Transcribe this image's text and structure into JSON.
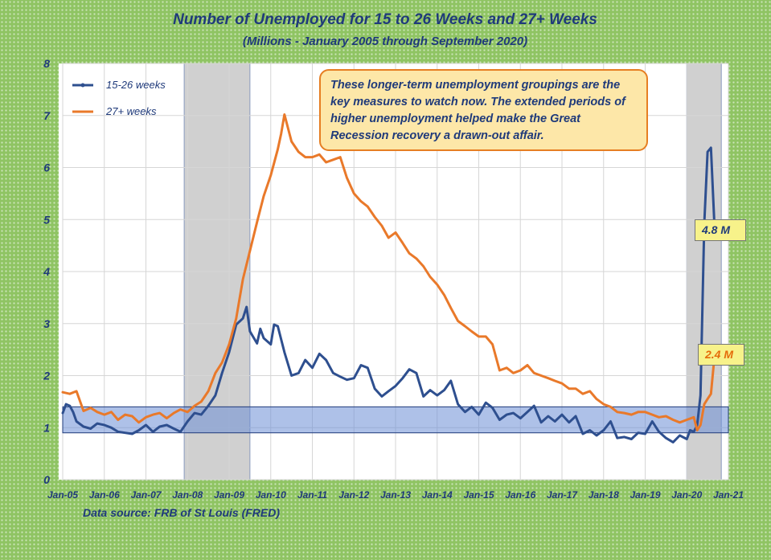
{
  "chart_data": {
    "type": "line",
    "title": "Number of Unemployed for 15 to 26 Weeks and 27+ Weeks",
    "subtitle": "(Millions - January 2005 through September 2020)",
    "xlabel": "",
    "ylabel": "",
    "ylim": [
      0,
      8
    ],
    "yticks": [
      "0",
      "1",
      "2",
      "3",
      "4",
      "5",
      "6",
      "7",
      "8"
    ],
    "x_ticks": [
      "Jan-05",
      "Jan-06",
      "Jan-07",
      "Jan-08",
      "Jan-09",
      "Jan-10",
      "Jan-11",
      "Jan-12",
      "Jan-13",
      "Jan-14",
      "Jan-15",
      "Jan-16",
      "Jan-17",
      "Jan-18",
      "Jan-19",
      "Jan-20",
      "Jan-21"
    ],
    "grid": "horizontal-and-vertical",
    "legend_position": "top-left",
    "x_format": "decimal year",
    "recession_shading": [
      [
        2007.92,
        2009.5
      ],
      [
        2020.0,
        2020.83
      ]
    ],
    "highlight_band": [
      0.9,
      1.4
    ],
    "series": [
      {
        "name": "15-26 weeks",
        "color": "#2e4f8f",
        "points": [
          [
            2005.0,
            1.28
          ],
          [
            2005.08,
            1.45
          ],
          [
            2005.17,
            1.42
          ],
          [
            2005.25,
            1.3
          ],
          [
            2005.33,
            1.12
          ],
          [
            2005.5,
            1.02
          ],
          [
            2005.67,
            0.98
          ],
          [
            2005.83,
            1.08
          ],
          [
            2006.0,
            1.05
          ],
          [
            2006.17,
            1.0
          ],
          [
            2006.33,
            0.92
          ],
          [
            2006.5,
            0.9
          ],
          [
            2006.67,
            0.88
          ],
          [
            2006.83,
            0.95
          ],
          [
            2007.0,
            1.05
          ],
          [
            2007.17,
            0.92
          ],
          [
            2007.33,
            1.02
          ],
          [
            2007.5,
            1.05
          ],
          [
            2007.67,
            0.98
          ],
          [
            2007.83,
            0.92
          ],
          [
            2008.0,
            1.12
          ],
          [
            2008.17,
            1.28
          ],
          [
            2008.33,
            1.25
          ],
          [
            2008.5,
            1.42
          ],
          [
            2008.67,
            1.62
          ],
          [
            2008.83,
            2.05
          ],
          [
            2009.0,
            2.45
          ],
          [
            2009.17,
            2.98
          ],
          [
            2009.33,
            3.1
          ],
          [
            2009.42,
            3.32
          ],
          [
            2009.5,
            2.85
          ],
          [
            2009.67,
            2.62
          ],
          [
            2009.75,
            2.9
          ],
          [
            2009.83,
            2.72
          ],
          [
            2010.0,
            2.6
          ],
          [
            2010.08,
            2.98
          ],
          [
            2010.17,
            2.95
          ],
          [
            2010.33,
            2.45
          ],
          [
            2010.5,
            2.0
          ],
          [
            2010.67,
            2.05
          ],
          [
            2010.83,
            2.3
          ],
          [
            2011.0,
            2.15
          ],
          [
            2011.17,
            2.42
          ],
          [
            2011.33,
            2.3
          ],
          [
            2011.5,
            2.05
          ],
          [
            2011.67,
            1.98
          ],
          [
            2011.83,
            1.92
          ],
          [
            2012.0,
            1.95
          ],
          [
            2012.17,
            2.2
          ],
          [
            2012.33,
            2.15
          ],
          [
            2012.5,
            1.75
          ],
          [
            2012.67,
            1.6
          ],
          [
            2012.83,
            1.7
          ],
          [
            2013.0,
            1.8
          ],
          [
            2013.17,
            1.95
          ],
          [
            2013.33,
            2.12
          ],
          [
            2013.5,
            2.05
          ],
          [
            2013.67,
            1.6
          ],
          [
            2013.83,
            1.72
          ],
          [
            2014.0,
            1.62
          ],
          [
            2014.17,
            1.72
          ],
          [
            2014.33,
            1.9
          ],
          [
            2014.5,
            1.45
          ],
          [
            2014.67,
            1.3
          ],
          [
            2014.83,
            1.4
          ],
          [
            2015.0,
            1.25
          ],
          [
            2015.17,
            1.48
          ],
          [
            2015.33,
            1.38
          ],
          [
            2015.5,
            1.15
          ],
          [
            2015.67,
            1.25
          ],
          [
            2015.83,
            1.28
          ],
          [
            2016.0,
            1.18
          ],
          [
            2016.17,
            1.3
          ],
          [
            2016.33,
            1.42
          ],
          [
            2016.5,
            1.1
          ],
          [
            2016.67,
            1.22
          ],
          [
            2016.83,
            1.12
          ],
          [
            2017.0,
            1.25
          ],
          [
            2017.17,
            1.1
          ],
          [
            2017.33,
            1.22
          ],
          [
            2017.5,
            0.88
          ],
          [
            2017.67,
            0.95
          ],
          [
            2017.83,
            0.85
          ],
          [
            2018.0,
            0.95
          ],
          [
            2018.17,
            1.12
          ],
          [
            2018.33,
            0.8
          ],
          [
            2018.5,
            0.82
          ],
          [
            2018.67,
            0.78
          ],
          [
            2018.83,
            0.9
          ],
          [
            2019.0,
            0.88
          ],
          [
            2019.17,
            1.12
          ],
          [
            2019.33,
            0.92
          ],
          [
            2019.5,
            0.8
          ],
          [
            2019.67,
            0.72
          ],
          [
            2019.83,
            0.85
          ],
          [
            2020.0,
            0.78
          ],
          [
            2020.08,
            0.95
          ],
          [
            2020.17,
            0.92
          ],
          [
            2020.25,
            1.05
          ],
          [
            2020.33,
            1.62
          ],
          [
            2020.42,
            4.92
          ],
          [
            2020.5,
            6.3
          ],
          [
            2020.58,
            6.38
          ],
          [
            2020.67,
            4.8
          ]
        ]
      },
      {
        "name": "27+ weeks",
        "color": "#e9792a",
        "points": [
          [
            2005.0,
            1.68
          ],
          [
            2005.17,
            1.65
          ],
          [
            2005.33,
            1.7
          ],
          [
            2005.5,
            1.32
          ],
          [
            2005.67,
            1.38
          ],
          [
            2005.83,
            1.3
          ],
          [
            2006.0,
            1.25
          ],
          [
            2006.17,
            1.3
          ],
          [
            2006.33,
            1.15
          ],
          [
            2006.5,
            1.25
          ],
          [
            2006.67,
            1.22
          ],
          [
            2006.83,
            1.1
          ],
          [
            2007.0,
            1.2
          ],
          [
            2007.17,
            1.25
          ],
          [
            2007.33,
            1.28
          ],
          [
            2007.5,
            1.18
          ],
          [
            2007.67,
            1.28
          ],
          [
            2007.83,
            1.35
          ],
          [
            2008.0,
            1.3
          ],
          [
            2008.17,
            1.42
          ],
          [
            2008.33,
            1.5
          ],
          [
            2008.5,
            1.7
          ],
          [
            2008.67,
            2.05
          ],
          [
            2008.83,
            2.25
          ],
          [
            2009.0,
            2.6
          ],
          [
            2009.17,
            3.1
          ],
          [
            2009.33,
            3.85
          ],
          [
            2009.5,
            4.4
          ],
          [
            2009.67,
            4.95
          ],
          [
            2009.83,
            5.45
          ],
          [
            2010.0,
            5.85
          ],
          [
            2010.17,
            6.35
          ],
          [
            2010.25,
            6.65
          ],
          [
            2010.33,
            7.02
          ],
          [
            2010.5,
            6.5
          ],
          [
            2010.67,
            6.3
          ],
          [
            2010.83,
            6.2
          ],
          [
            2011.0,
            6.2
          ],
          [
            2011.17,
            6.25
          ],
          [
            2011.33,
            6.1
          ],
          [
            2011.5,
            6.15
          ],
          [
            2011.67,
            6.2
          ],
          [
            2011.83,
            5.8
          ],
          [
            2012.0,
            5.5
          ],
          [
            2012.17,
            5.35
          ],
          [
            2012.33,
            5.25
          ],
          [
            2012.5,
            5.05
          ],
          [
            2012.67,
            4.88
          ],
          [
            2012.83,
            4.65
          ],
          [
            2013.0,
            4.75
          ],
          [
            2013.17,
            4.55
          ],
          [
            2013.33,
            4.35
          ],
          [
            2013.5,
            4.25
          ],
          [
            2013.67,
            4.1
          ],
          [
            2013.83,
            3.9
          ],
          [
            2014.0,
            3.75
          ],
          [
            2014.17,
            3.55
          ],
          [
            2014.33,
            3.3
          ],
          [
            2014.5,
            3.05
          ],
          [
            2014.67,
            2.95
          ],
          [
            2014.83,
            2.85
          ],
          [
            2015.0,
            2.75
          ],
          [
            2015.17,
            2.75
          ],
          [
            2015.33,
            2.6
          ],
          [
            2015.5,
            2.1
          ],
          [
            2015.67,
            2.15
          ],
          [
            2015.83,
            2.05
          ],
          [
            2016.0,
            2.1
          ],
          [
            2016.17,
            2.2
          ],
          [
            2016.33,
            2.05
          ],
          [
            2016.5,
            2.0
          ],
          [
            2016.67,
            1.95
          ],
          [
            2016.83,
            1.9
          ],
          [
            2017.0,
            1.85
          ],
          [
            2017.17,
            1.75
          ],
          [
            2017.33,
            1.75
          ],
          [
            2017.5,
            1.65
          ],
          [
            2017.67,
            1.7
          ],
          [
            2017.83,
            1.55
          ],
          [
            2018.0,
            1.45
          ],
          [
            2018.17,
            1.4
          ],
          [
            2018.33,
            1.3
          ],
          [
            2018.5,
            1.28
          ],
          [
            2018.67,
            1.25
          ],
          [
            2018.83,
            1.3
          ],
          [
            2019.0,
            1.3
          ],
          [
            2019.17,
            1.25
          ],
          [
            2019.33,
            1.2
          ],
          [
            2019.5,
            1.22
          ],
          [
            2019.67,
            1.15
          ],
          [
            2019.83,
            1.1
          ],
          [
            2020.0,
            1.15
          ],
          [
            2020.17,
            1.2
          ],
          [
            2020.25,
            0.95
          ],
          [
            2020.33,
            1.05
          ],
          [
            2020.42,
            1.45
          ],
          [
            2020.5,
            1.55
          ],
          [
            2020.58,
            1.65
          ],
          [
            2020.67,
            2.4
          ]
        ]
      }
    ],
    "value_labels": [
      "4.8 M",
      "2.4 M"
    ]
  },
  "annotation": "These longer-term unemployment groupings are the key measures to watch now. The extended periods of higher unemployment helped make the Great Recession recovery a drawn-out affair.",
  "source": "Data source: FRB of St Louis (FRED)",
  "colors": {
    "page_background": "#8fc463",
    "plot_background": "#ffffff",
    "recession_shade": "#d0d0d0",
    "band_fill": "#6b8ed6",
    "text": "#1f3a7a"
  }
}
